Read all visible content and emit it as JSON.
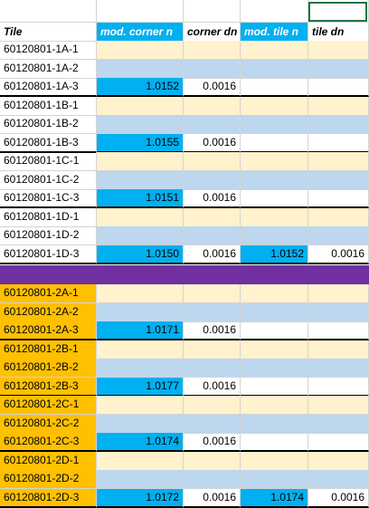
{
  "colors": {
    "header_accent": "#00b0f0",
    "value_cell": "#00b0f0",
    "empty_row_1": "#fff2cc",
    "empty_row_2": "#bdd7ee",
    "group2_tile": "#ffc000",
    "separator": "#7030a0",
    "selection": "#217346"
  },
  "header": {
    "tile": "Tile",
    "mod_corner_n": "mod. corner n",
    "corner_dn": "corner dn",
    "mod_tile_n": "mod. tile n",
    "tile_dn": "tile dn"
  },
  "rows": [
    {
      "tile": "60120801-1A-1"
    },
    {
      "tile": "60120801-1A-2"
    },
    {
      "tile": "60120801-1A-3",
      "mod_corner_n": "1.0152",
      "corner_dn": "0.0016"
    },
    {
      "tile": "60120801-1B-1"
    },
    {
      "tile": "60120801-1B-2"
    },
    {
      "tile": "60120801-1B-3",
      "mod_corner_n": "1.0155",
      "corner_dn": "0.0016"
    },
    {
      "tile": "60120801-1C-1"
    },
    {
      "tile": "60120801-1C-2"
    },
    {
      "tile": "60120801-1C-3",
      "mod_corner_n": "1.0151",
      "corner_dn": "0.0016"
    },
    {
      "tile": "60120801-1D-1"
    },
    {
      "tile": "60120801-1D-2"
    },
    {
      "tile": "60120801-1D-3",
      "mod_corner_n": "1.0150",
      "corner_dn": "0.0016",
      "mod_tile_n": "1.0152",
      "tile_dn": "0.0016"
    },
    {
      "tile": "60120801-2A-1"
    },
    {
      "tile": "60120801-2A-2"
    },
    {
      "tile": "60120801-2A-3",
      "mod_corner_n": "1.0171",
      "corner_dn": "0.0016"
    },
    {
      "tile": "60120801-2B-1"
    },
    {
      "tile": "60120801-2B-2"
    },
    {
      "tile": "60120801-2B-3",
      "mod_corner_n": "1.0177",
      "corner_dn": "0.0016"
    },
    {
      "tile": "60120801-2C-1"
    },
    {
      "tile": "60120801-2C-2"
    },
    {
      "tile": "60120801-2C-3",
      "mod_corner_n": "1.0174",
      "corner_dn": "0.0016"
    },
    {
      "tile": "60120801-2D-1"
    },
    {
      "tile": "60120801-2D-2"
    },
    {
      "tile": "60120801-2D-3",
      "mod_corner_n": "1.0172",
      "corner_dn": "0.0016",
      "mod_tile_n": "1.0174",
      "tile_dn": "0.0016"
    }
  ]
}
